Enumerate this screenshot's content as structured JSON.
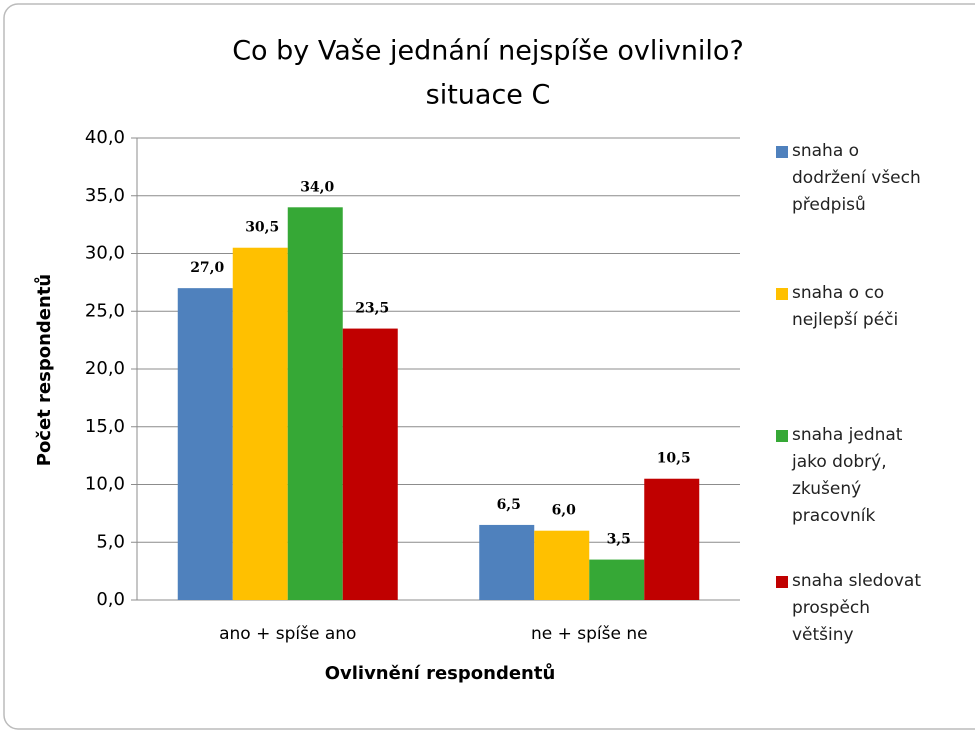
{
  "chart_data": {
    "type": "bar",
    "title": "Co by Vaše jednání nejspíše ovlivnilo?",
    "subtitle": "situace C",
    "x_label": "Ovlivnění respondentů",
    "y_label": "Počet respondentů",
    "categories": [
      "ano + spíše ano",
      "ne + spíše ne"
    ],
    "series": [
      {
        "name": "snaha o dodržení všech předpisů",
        "color": "#4f81bd",
        "values": [
          27.0,
          6.5
        ],
        "value_labels": [
          "27,0",
          "6,5"
        ]
      },
      {
        "name": "snaha o co nejlepší péči",
        "color": "#ffc000",
        "values": [
          30.5,
          6.0
        ],
        "value_labels": [
          "30,5",
          "6,0"
        ]
      },
      {
        "name": "snaha jednat jako dobrý, zkušený pracovník",
        "color": "#36a836",
        "values": [
          34.0,
          3.5
        ],
        "value_labels": [
          "34,0",
          "3,5"
        ]
      },
      {
        "name": "snaha sledovat prospěch většiny",
        "color": "#c00000",
        "values": [
          23.5,
          10.5
        ],
        "value_labels": [
          "23,5",
          "10,5"
        ]
      }
    ],
    "ylim": [
      0,
      40
    ],
    "yticks": [
      {
        "value": 0,
        "label": "0,0"
      },
      {
        "value": 5,
        "label": "5,0"
      },
      {
        "value": 10,
        "label": "10,0"
      },
      {
        "value": 15,
        "label": "15,0"
      },
      {
        "value": 20,
        "label": "20,0"
      },
      {
        "value": 25,
        "label": "25,0"
      },
      {
        "value": 30,
        "label": "30,0"
      },
      {
        "value": 35,
        "label": "35,0"
      },
      {
        "value": 40,
        "label": "40,0"
      }
    ],
    "grid": true,
    "legend": "right"
  }
}
